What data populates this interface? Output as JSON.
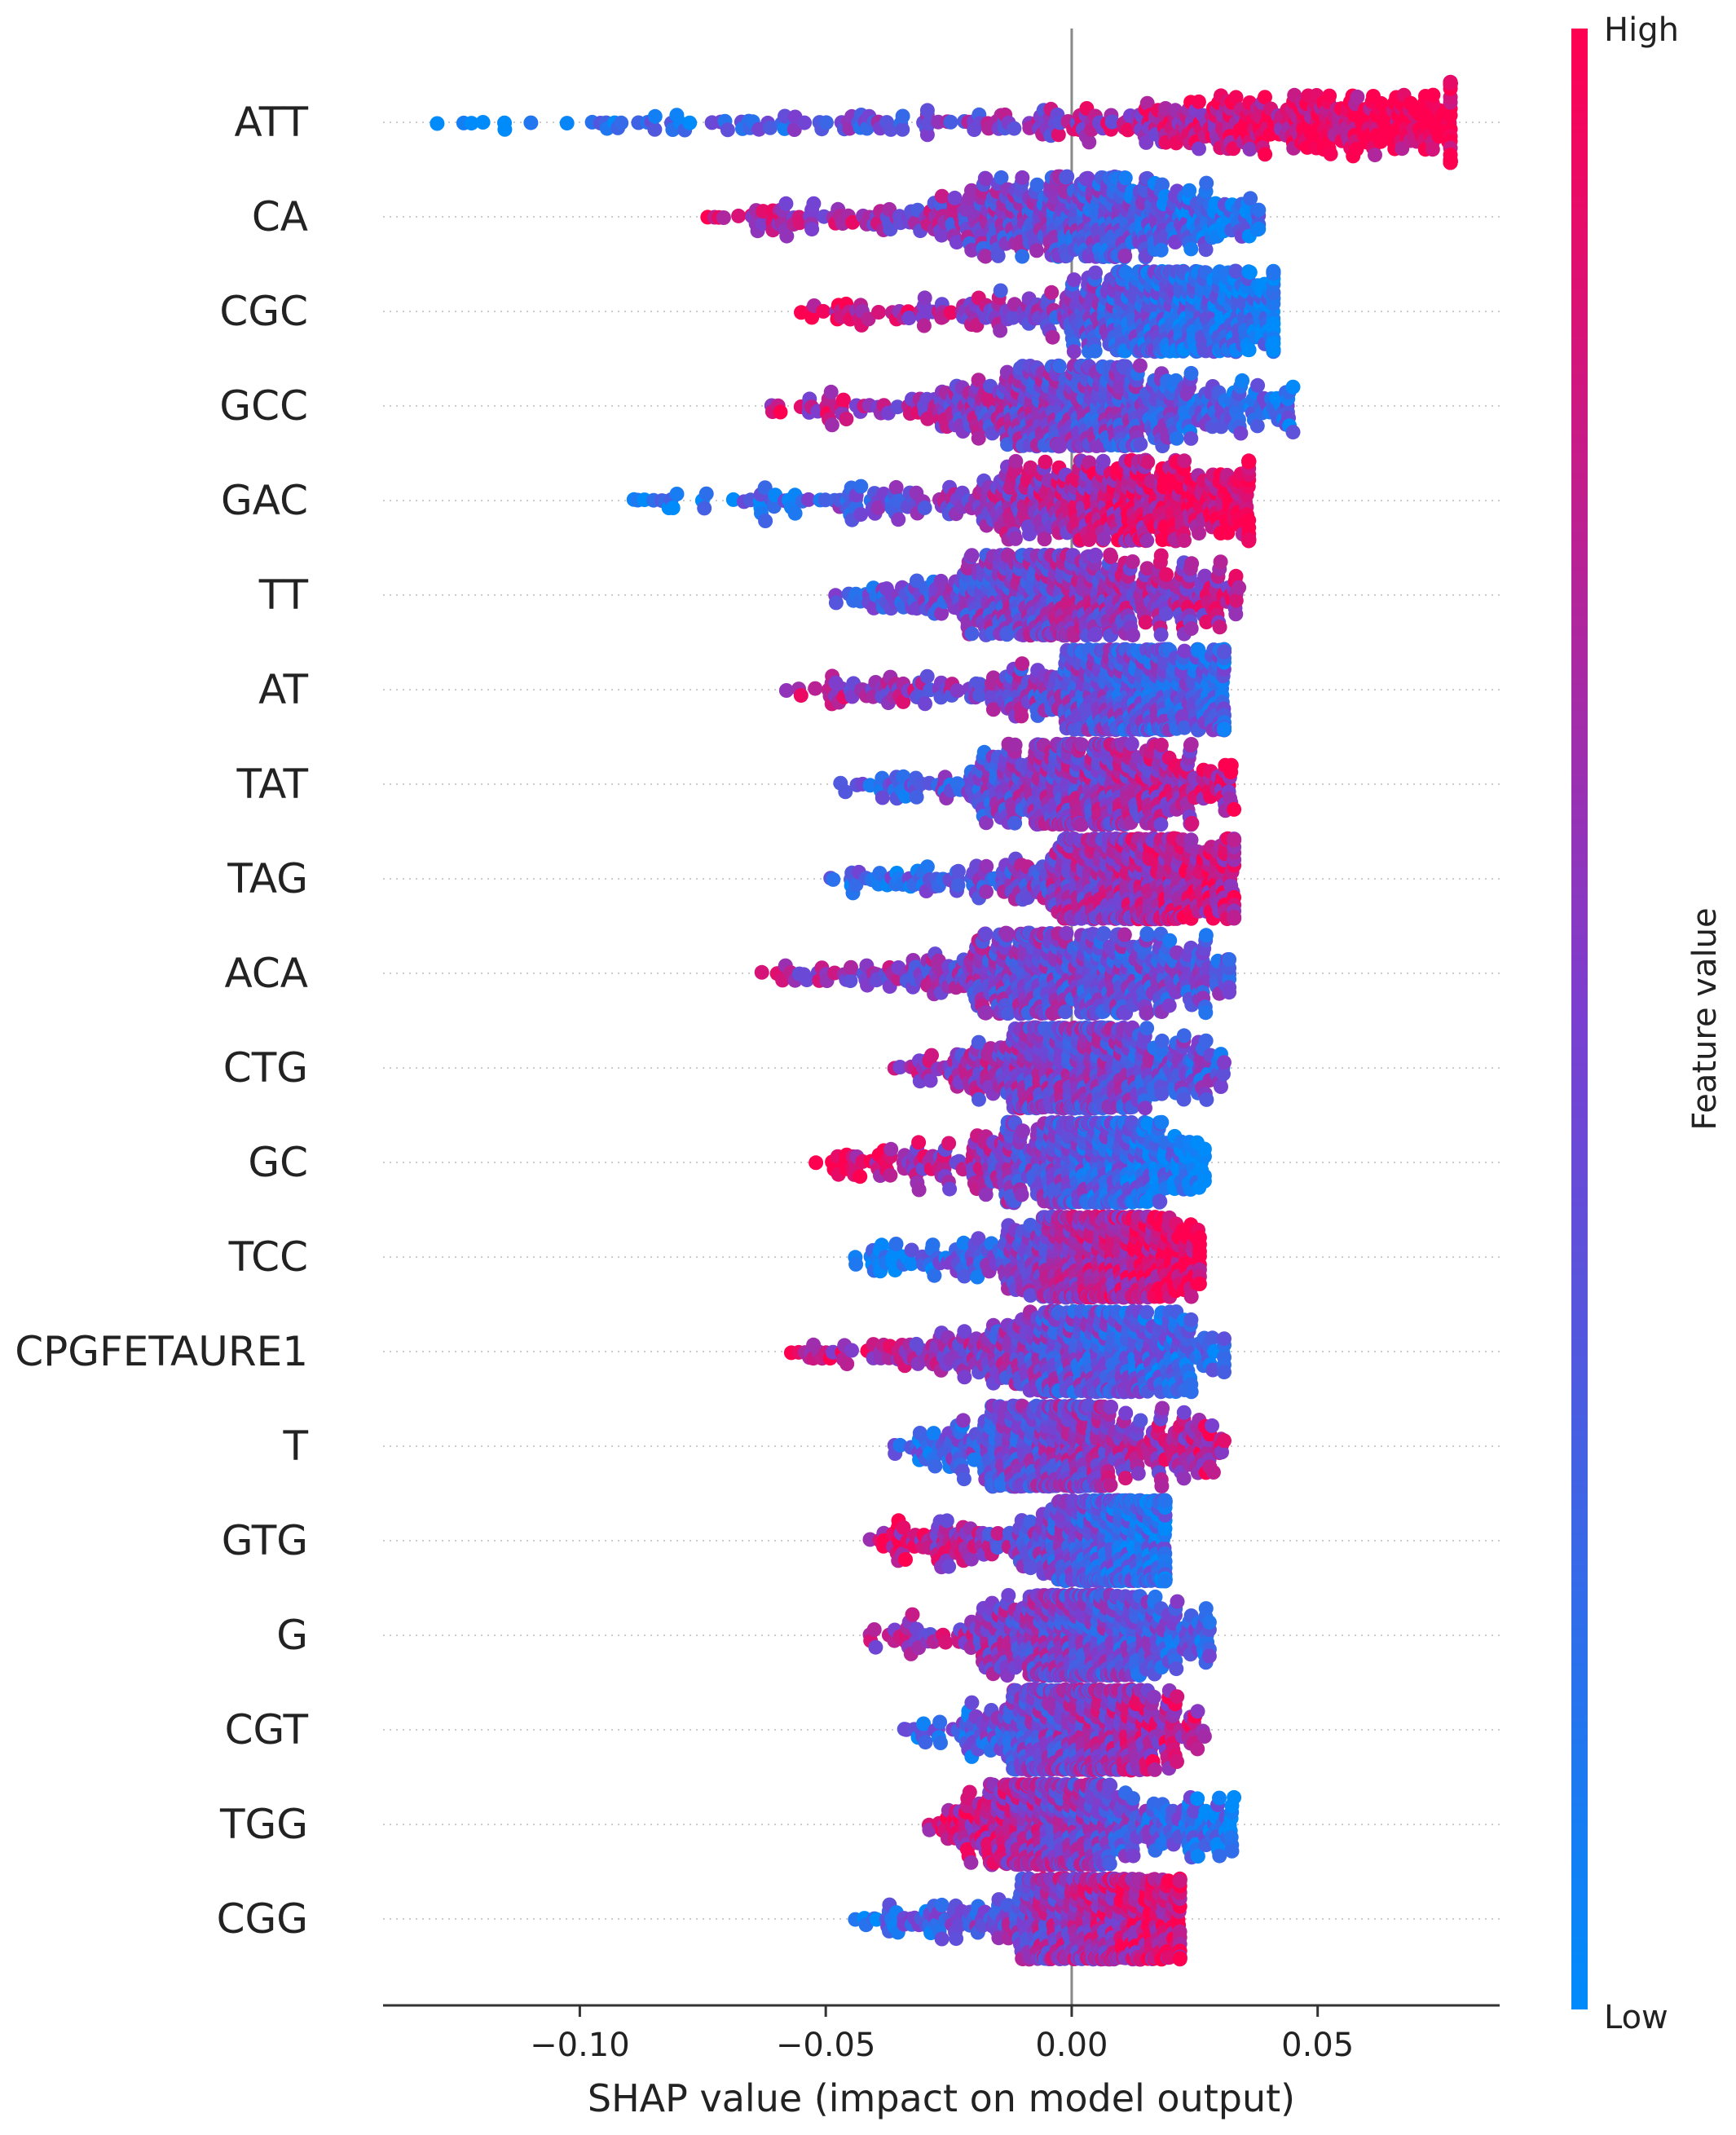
{
  "chart_data": {
    "type": "scatter",
    "subtype": "shap-beeswarm",
    "title": "",
    "xlabel": "SHAP value (impact on model output)",
    "xlim": [
      -0.14,
      0.087
    ],
    "xticks": [
      -0.1,
      -0.05,
      0.0,
      0.05
    ],
    "xtick_labels": [
      "−0.10",
      "−0.05",
      "0.00",
      "0.05"
    ],
    "colorbar": {
      "title": "Feature value",
      "high_label": "High",
      "low_label": "Low",
      "high_color": "#ff0051",
      "low_color": "#008bfb"
    },
    "features": [
      {
        "name": "ATT",
        "min": -0.129,
        "max": 0.077,
        "peak": 0.055,
        "corr": 1.0
      },
      {
        "name": "CA",
        "min": -0.074,
        "max": 0.038,
        "peak": 0.002,
        "corr": -0.6
      },
      {
        "name": "CGC",
        "min": -0.055,
        "max": 0.041,
        "peak": 0.02,
        "corr": -0.8
      },
      {
        "name": "GCC",
        "min": -0.061,
        "max": 0.045,
        "peak": 0.0,
        "corr": -0.5
      },
      {
        "name": "GAC",
        "min": -0.089,
        "max": 0.036,
        "peak": 0.01,
        "corr": 0.9
      },
      {
        "name": "TT",
        "min": -0.048,
        "max": 0.034,
        "peak": -0.005,
        "corr": 0.4
      },
      {
        "name": "AT",
        "min": -0.058,
        "max": 0.031,
        "peak": 0.015,
        "corr": -0.4
      },
      {
        "name": "TAT",
        "min": -0.047,
        "max": 0.033,
        "peak": 0.003,
        "corr": 0.5
      },
      {
        "name": "TAG",
        "min": -0.049,
        "max": 0.033,
        "peak": 0.012,
        "corr": 0.6
      },
      {
        "name": "ACA",
        "min": -0.063,
        "max": 0.032,
        "peak": 0.0,
        "corr": -0.3
      },
      {
        "name": "CTG",
        "min": -0.036,
        "max": 0.031,
        "peak": 0.0,
        "corr": -0.3
      },
      {
        "name": "GC",
        "min": -0.052,
        "max": 0.027,
        "peak": 0.003,
        "corr": -0.8
      },
      {
        "name": "TCC",
        "min": -0.044,
        "max": 0.026,
        "peak": 0.005,
        "corr": 0.9
      },
      {
        "name": "CPGFETAURE1",
        "min": -0.057,
        "max": 0.031,
        "peak": 0.003,
        "corr": -0.6
      },
      {
        "name": "T",
        "min": -0.036,
        "max": 0.031,
        "peak": -0.005,
        "corr": 0.5
      },
      {
        "name": "GTG",
        "min": -0.041,
        "max": 0.019,
        "peak": 0.009,
        "corr": -0.6
      },
      {
        "name": "G",
        "min": -0.041,
        "max": 0.028,
        "peak": 0.0,
        "corr": -0.4
      },
      {
        "name": "CGT",
        "min": -0.034,
        "max": 0.027,
        "peak": 0.0,
        "corr": 0.6
      },
      {
        "name": "TGG",
        "min": -0.029,
        "max": 0.033,
        "peak": -0.005,
        "corr": -0.7
      },
      {
        "name": "CGG",
        "min": -0.044,
        "max": 0.022,
        "peak": 0.005,
        "corr": 0.7
      }
    ]
  }
}
